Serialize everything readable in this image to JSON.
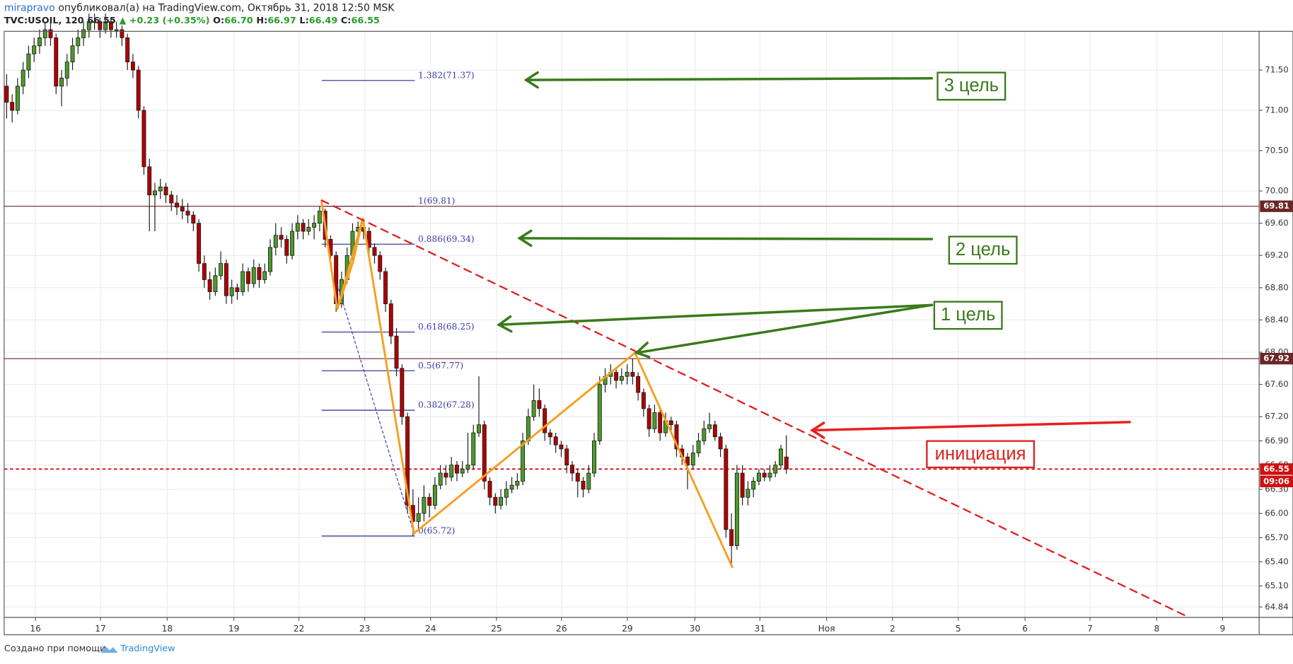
{
  "header": {
    "author": "mirapravo",
    "published": "опубликовал(а) на TradingView.com, Октябрь 31, 2018 12:50 MSK",
    "symbol": "TVC:USOIL, 120",
    "last": "66.55",
    "change": "▲ +0.23 (+0.35%)",
    "ohlc": [
      {
        "k": "O:",
        "v": "66.70"
      },
      {
        "k": "H:",
        "v": "66.97"
      },
      {
        "k": "L:",
        "v": "66.49"
      },
      {
        "k": "C:",
        "v": "66.55"
      }
    ]
  },
  "footer": {
    "text": "Создано при помощи",
    "brand": "TradingView"
  },
  "chart_data": {
    "type": "candlestick",
    "up_color": "#4c9a2a",
    "down_color": "#b00000",
    "grid": true,
    "xlim": [
      -0.45,
      228.1
    ],
    "ylim": [
      64.71,
      71.98
    ],
    "xticks": [
      {
        "value": 5.25,
        "label": "16"
      },
      {
        "value": 17.09,
        "label": "17"
      },
      {
        "value": 29.24,
        "label": "18"
      },
      {
        "value": 41.38,
        "label": "19"
      },
      {
        "value": 53.22,
        "label": "22"
      },
      {
        "value": 65.22,
        "label": "23"
      },
      {
        "value": 77.21,
        "label": "24"
      },
      {
        "value": 89.21,
        "label": "25"
      },
      {
        "value": 101.05,
        "label": "26"
      },
      {
        "value": 113.04,
        "label": "29"
      },
      {
        "value": 125.34,
        "label": "30"
      },
      {
        "value": 137.18,
        "label": "31"
      },
      {
        "value": 149.33,
        "label": "Ноя"
      },
      {
        "value": 161.32,
        "label": "2"
      },
      {
        "value": 173.31,
        "label": "5"
      },
      {
        "value": 185.46,
        "label": "6"
      },
      {
        "value": 197.3,
        "label": "7"
      },
      {
        "value": 209.45,
        "label": "8"
      },
      {
        "value": 221.44,
        "label": "9"
      }
    ],
    "yticks": [
      {
        "value": 71.5,
        "label": "71.50"
      },
      {
        "value": 71,
        "label": "71.00"
      },
      {
        "value": 70.5,
        "label": "70.50"
      },
      {
        "value": 70,
        "label": "70.00"
      },
      {
        "value": 69.6,
        "label": "69.60"
      },
      {
        "value": 69.2,
        "label": "69.20"
      },
      {
        "value": 68.8,
        "label": "68.80"
      },
      {
        "value": 68.4,
        "label": "68.40"
      },
      {
        "value": 68,
        "label": "68.00"
      },
      {
        "value": 67.6,
        "label": "67.60"
      },
      {
        "value": 67.2,
        "label": "67.20"
      },
      {
        "value": 66.9,
        "label": "66.90"
      },
      {
        "value": 66.6,
        "label": "66.60"
      },
      {
        "value": 66.3,
        "label": "66.30"
      },
      {
        "value": 66,
        "label": "66.00"
      },
      {
        "value": 65.7,
        "label": "65.70"
      },
      {
        "value": 65.4,
        "label": "65.40"
      },
      {
        "value": 65.1,
        "label": "65.10"
      },
      64.84
    ],
    "candles": [
      [
        71.3,
        71.45,
        70.9,
        71.1
      ],
      [
        71.1,
        71.2,
        70.85,
        71.0
      ],
      [
        71.0,
        71.4,
        70.95,
        71.3
      ],
      [
        71.3,
        71.6,
        71.2,
        71.5
      ],
      [
        71.5,
        71.8,
        71.4,
        71.7
      ],
      [
        71.7,
        71.9,
        71.6,
        71.8
      ],
      [
        71.8,
        72.0,
        71.7,
        71.9
      ],
      [
        71.9,
        72.1,
        71.8,
        72.0
      ],
      [
        72.0,
        72.1,
        71.8,
        71.9
      ],
      [
        71.9,
        71.95,
        71.2,
        71.3
      ],
      [
        71.3,
        71.5,
        71.05,
        71.4
      ],
      [
        71.4,
        71.7,
        71.3,
        71.6
      ],
      [
        71.6,
        71.9,
        71.5,
        71.8
      ],
      [
        71.8,
        72.0,
        71.7,
        71.9
      ],
      [
        71.9,
        72.1,
        71.8,
        72.0
      ],
      [
        72.0,
        72.2,
        71.9,
        72.1
      ],
      [
        72.1,
        72.2,
        72.0,
        72.1
      ],
      [
        72.1,
        72.15,
        71.9,
        72.0
      ],
      [
        72.0,
        72.2,
        71.95,
        72.1
      ],
      [
        72.1,
        72.15,
        71.9,
        72.0
      ],
      [
        72.0,
        72.1,
        71.9,
        72.0
      ],
      [
        72.0,
        72.05,
        71.8,
        71.9
      ],
      [
        71.9,
        71.95,
        71.5,
        71.6
      ],
      [
        71.6,
        71.7,
        71.4,
        71.5
      ],
      [
        71.5,
        71.55,
        70.9,
        71.0
      ],
      [
        71.0,
        71.05,
        70.2,
        70.3
      ],
      [
        70.3,
        70.4,
        69.5,
        69.95
      ],
      [
        69.95,
        70.1,
        69.5,
        70.0
      ],
      [
        70.0,
        70.15,
        69.9,
        70.05
      ],
      [
        70.05,
        70.1,
        69.85,
        69.95
      ],
      [
        69.95,
        70.0,
        69.75,
        69.85
      ],
      [
        69.85,
        69.95,
        69.7,
        69.8
      ],
      [
        69.8,
        69.9,
        69.65,
        69.75
      ],
      [
        69.75,
        69.85,
        69.6,
        69.7
      ],
      [
        69.7,
        69.75,
        69.5,
        69.6
      ],
      [
        69.6,
        69.65,
        69.0,
        69.1
      ],
      [
        69.1,
        69.2,
        68.8,
        68.9
      ],
      [
        68.9,
        69.0,
        68.65,
        68.75
      ],
      [
        68.75,
        69.05,
        68.7,
        68.95
      ],
      [
        68.95,
        69.25,
        68.9,
        69.1
      ],
      [
        69.1,
        69.15,
        68.6,
        68.7
      ],
      [
        68.7,
        68.9,
        68.6,
        68.8
      ],
      [
        68.8,
        68.85,
        68.65,
        68.75
      ],
      [
        68.75,
        69.1,
        68.7,
        69.0
      ],
      [
        69.0,
        69.05,
        68.75,
        68.85
      ],
      [
        68.85,
        69.15,
        68.8,
        69.05
      ],
      [
        69.05,
        69.1,
        68.8,
        68.9
      ],
      [
        68.9,
        69.1,
        68.85,
        69.0
      ],
      [
        69.0,
        69.4,
        68.95,
        69.3
      ],
      [
        69.3,
        69.6,
        69.2,
        69.45
      ],
      [
        69.45,
        69.55,
        69.3,
        69.4
      ],
      [
        69.4,
        69.45,
        69.1,
        69.2
      ],
      [
        69.2,
        69.6,
        69.15,
        69.5
      ],
      [
        69.5,
        69.7,
        69.4,
        69.6
      ],
      [
        69.6,
        69.65,
        69.4,
        69.5
      ],
      [
        69.5,
        69.65,
        69.45,
        69.55
      ],
      [
        69.55,
        69.7,
        69.4,
        69.6
      ],
      [
        69.6,
        69.81,
        69.5,
        69.75
      ],
      [
        69.75,
        69.78,
        69.3,
        69.4
      ],
      [
        69.4,
        69.45,
        69.1,
        69.2
      ],
      [
        69.2,
        69.25,
        68.5,
        68.6
      ],
      [
        68.6,
        69.0,
        68.55,
        68.9
      ],
      [
        68.9,
        69.3,
        68.85,
        69.2
      ],
      [
        69.2,
        69.6,
        69.15,
        69.5
      ],
      [
        69.5,
        69.62,
        69.4,
        69.55
      ],
      [
        69.55,
        69.62,
        69.4,
        69.5
      ],
      [
        69.5,
        69.55,
        69.2,
        69.3
      ],
      [
        69.3,
        69.35,
        69.1,
        69.2
      ],
      [
        69.2,
        69.25,
        68.9,
        69.0
      ],
      [
        69.0,
        69.05,
        68.5,
        68.6
      ],
      [
        68.6,
        68.65,
        68.1,
        68.2
      ],
      [
        68.2,
        68.3,
        67.7,
        67.8
      ],
      [
        67.8,
        67.85,
        67.1,
        67.2
      ],
      [
        67.2,
        67.25,
        66.0,
        66.1
      ],
      [
        66.1,
        66.3,
        65.72,
        65.9
      ],
      [
        65.9,
        66.2,
        65.8,
        66.0
      ],
      [
        66.0,
        66.35,
        65.9,
        66.2
      ],
      [
        66.2,
        66.25,
        65.95,
        66.1
      ],
      [
        66.1,
        66.45,
        66.05,
        66.35
      ],
      [
        66.35,
        66.6,
        66.3,
        66.5
      ],
      [
        66.5,
        66.6,
        66.35,
        66.45
      ],
      [
        66.45,
        66.7,
        66.4,
        66.6
      ],
      [
        66.6,
        66.65,
        66.4,
        66.5
      ],
      [
        66.5,
        66.65,
        66.45,
        66.55
      ],
      [
        66.55,
        67.0,
        66.5,
        66.6
      ],
      [
        66.6,
        67.1,
        66.55,
        67.0
      ],
      [
        67.0,
        67.7,
        66.95,
        67.1
      ],
      [
        67.1,
        67.15,
        66.3,
        66.4
      ],
      [
        66.4,
        66.45,
        66.1,
        66.2
      ],
      [
        66.2,
        66.25,
        66.0,
        66.1
      ],
      [
        66.1,
        66.3,
        66.05,
        66.2
      ],
      [
        66.2,
        66.4,
        66.1,
        66.3
      ],
      [
        66.3,
        66.45,
        66.25,
        66.35
      ],
      [
        66.35,
        66.5,
        66.3,
        66.4
      ],
      [
        66.4,
        67.0,
        66.35,
        66.9
      ],
      [
        66.9,
        67.3,
        66.85,
        67.2
      ],
      [
        67.2,
        67.6,
        67.15,
        67.4
      ],
      [
        67.4,
        67.55,
        67.2,
        67.3
      ],
      [
        67.3,
        67.35,
        66.9,
        67.0
      ],
      [
        67.0,
        67.05,
        66.85,
        66.95
      ],
      [
        66.95,
        67.0,
        66.75,
        66.85
      ],
      [
        66.85,
        66.9,
        66.7,
        66.8
      ],
      [
        66.8,
        66.85,
        66.5,
        66.6
      ],
      [
        66.6,
        66.65,
        66.4,
        66.5
      ],
      [
        66.5,
        66.55,
        66.2,
        66.4
      ],
      [
        66.4,
        66.45,
        66.2,
        66.3
      ],
      [
        66.3,
        66.6,
        66.25,
        66.5
      ],
      [
        66.5,
        67.0,
        66.45,
        66.9
      ],
      [
        66.9,
        67.7,
        66.85,
        67.6
      ],
      [
        67.6,
        67.8,
        67.5,
        67.7
      ],
      [
        67.7,
        67.85,
        67.6,
        67.75
      ],
      [
        67.75,
        67.8,
        67.55,
        67.65
      ],
      [
        67.65,
        67.8,
        67.6,
        67.7
      ],
      [
        67.7,
        67.85,
        67.6,
        67.75
      ],
      [
        67.75,
        67.92,
        67.6,
        67.7
      ],
      [
        67.7,
        67.75,
        67.4,
        67.5
      ],
      [
        67.5,
        67.55,
        67.2,
        67.3
      ],
      [
        67.3,
        67.35,
        66.95,
        67.05
      ],
      [
        67.05,
        67.35,
        67.0,
        67.25
      ],
      [
        67.25,
        67.3,
        66.9,
        67.0
      ],
      [
        67.0,
        67.25,
        66.95,
        67.15
      ],
      [
        67.15,
        67.2,
        67.0,
        67.1
      ],
      [
        67.1,
        67.15,
        66.7,
        66.8
      ],
      [
        66.8,
        66.85,
        66.6,
        66.7
      ],
      [
        66.7,
        66.75,
        66.3,
        66.6
      ],
      [
        66.6,
        66.85,
        66.55,
        66.75
      ],
      [
        66.75,
        67.0,
        66.7,
        66.9
      ],
      [
        66.9,
        67.15,
        66.85,
        67.05
      ],
      [
        67.05,
        67.25,
        67.0,
        67.1
      ],
      [
        67.1,
        67.15,
        66.9,
        66.95
      ],
      [
        66.95,
        67.0,
        66.7,
        66.8
      ],
      [
        66.8,
        66.85,
        65.7,
        65.8
      ],
      [
        65.8,
        66.0,
        65.35,
        65.6
      ],
      [
        65.6,
        66.6,
        65.55,
        66.5
      ],
      [
        66.5,
        66.6,
        66.1,
        66.2
      ],
      [
        66.2,
        66.4,
        66.1,
        66.3
      ],
      [
        66.3,
        66.45,
        66.2,
        66.4
      ],
      [
        66.4,
        66.55,
        66.35,
        66.5
      ],
      [
        66.5,
        66.55,
        66.4,
        66.45
      ],
      [
        66.45,
        66.6,
        66.4,
        66.5
      ],
      [
        66.5,
        66.65,
        66.45,
        66.6
      ],
      [
        66.6,
        66.85,
        66.55,
        66.8
      ],
      [
        66.7,
        66.97,
        66.49,
        66.55
      ]
    ],
    "levels": [
      {
        "price": 69.81,
        "color": "#6b2626"
      },
      {
        "price": 67.92,
        "color": "#6b2626"
      }
    ],
    "last_color": "#d01010",
    "countdown": "09:06",
    "fib": [
      {
        "label": "1.382(71.37)",
        "price": 71.37
      },
      {
        "label": "1(69.81)",
        "price": 69.81
      },
      {
        "label": "0.886(69.34)",
        "price": 69.34
      },
      {
        "label": "0.618(68.25)",
        "price": 68.25
      },
      {
        "label": "0.5(67.77)",
        "price": 67.77
      },
      {
        "label": "0.382(67.28)",
        "price": 67.28
      },
      {
        "label": "0(65.72)",
        "price": 65.72
      }
    ],
    "annotations": [
      "3 цель",
      "2 цель",
      "1 цель",
      "инициация"
    ]
  }
}
